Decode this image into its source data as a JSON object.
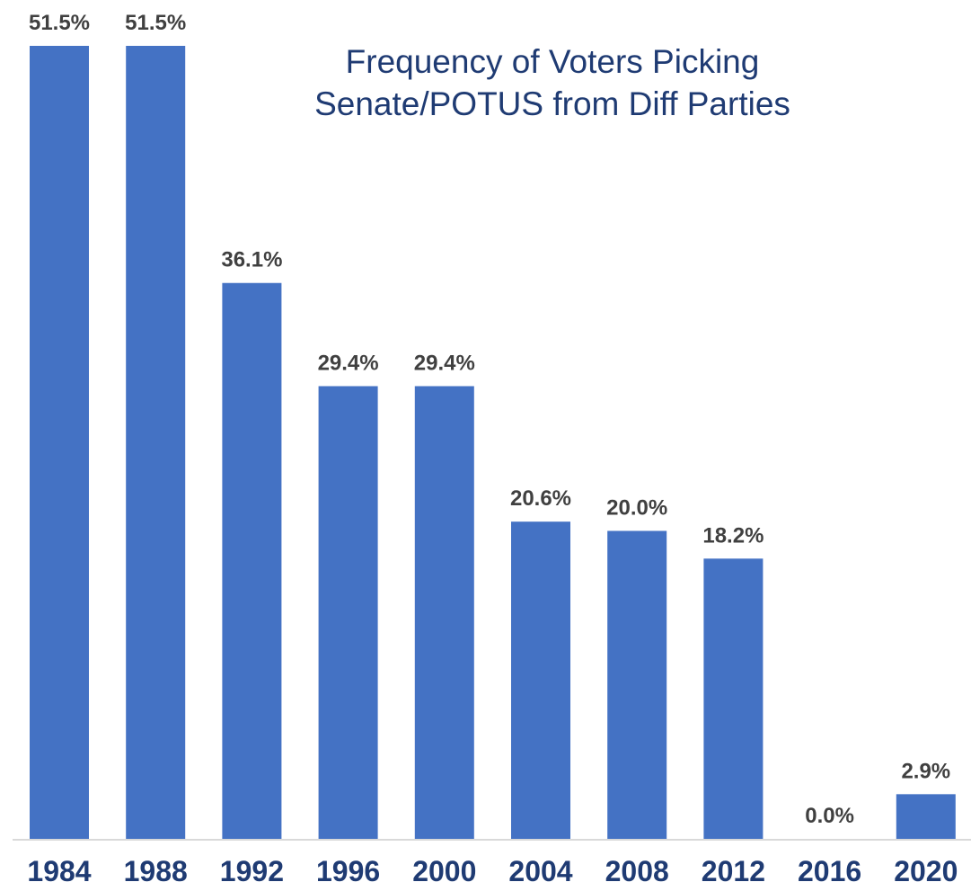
{
  "chart_data": {
    "type": "bar",
    "title_lines": [
      "Frequency of Voters Picking",
      "Senate/POTUS from Diff Parties"
    ],
    "categories": [
      "1984",
      "1988",
      "1992",
      "1996",
      "2000",
      "2004",
      "2008",
      "2012",
      "2016",
      "2020"
    ],
    "values": [
      51.5,
      51.5,
      36.1,
      29.4,
      29.4,
      20.6,
      20.0,
      18.2,
      0.0,
      2.9
    ],
    "value_labels": [
      "51.5%",
      "51.5%",
      "36.1%",
      "29.4%",
      "29.4%",
      "20.6%",
      "20.0%",
      "18.2%",
      "0.0%",
      "2.9%"
    ],
    "xlabel": "",
    "ylabel": "",
    "ylim": [
      0,
      51.5
    ],
    "grid": false,
    "legend": "none",
    "colors": {
      "bar": "#4472c4",
      "title": "#1f3b73",
      "axis_labels": "#1f3b73",
      "data_labels": "#404040",
      "axis_line": "#d9d9d9"
    }
  }
}
